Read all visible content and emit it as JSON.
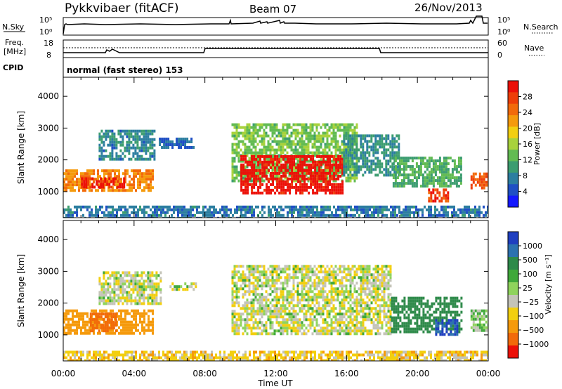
{
  "header": {
    "station": "Pykkvibaer (fitACF)",
    "beam": "Beam 07",
    "date": "26/Nov/2013"
  },
  "aux_panels": {
    "nsky": {
      "label": "N.Sky",
      "ticks_left": [
        "10^5",
        "10^0"
      ],
      "right_label": "N.Search",
      "ticks_right": [
        "10^5",
        "10^0"
      ]
    },
    "freq": {
      "label_line1": "Freq.",
      "label_line2": "[MHz]",
      "ticks_left": [
        "18",
        "8"
      ],
      "right_label": "Nave",
      "ticks_right": [
        "60",
        "0"
      ]
    },
    "cpid": {
      "label": "CPID",
      "value": "normal (fast stereo) 153"
    }
  },
  "chart_data": [
    {
      "type": "heatmap",
      "name": "power",
      "ylabel": "Slant Range [km]",
      "ylim": [
        180,
        4600
      ],
      "yticks": [
        "1000",
        "2000",
        "3000",
        "4000"
      ],
      "colorbar": {
        "label": "Power [dB]",
        "ticks": [
          "4",
          "8",
          "12",
          "16",
          "20",
          "24",
          "28"
        ],
        "colors": [
          "#1418ff",
          "#1f4fc4",
          "#2c7ea0",
          "#3c9d70",
          "#62bb52",
          "#a8d23c",
          "#f2cf10",
          "#f59a0c",
          "#f26a0a",
          "#ee3e08",
          "#ec1008"
        ]
      },
      "regions": [
        {
          "t0": 0.0,
          "t1": 5.0,
          "r0": 1050,
          "r1": 1700,
          "value": 22
        },
        {
          "t0": 1.0,
          "t1": 3.4,
          "r0": 1100,
          "r1": 1450,
          "value": 28
        },
        {
          "t0": 2.0,
          "t1": 5.1,
          "r0": 2000,
          "r1": 2950,
          "value": 9
        },
        {
          "t0": 5.4,
          "t1": 7.4,
          "r0": 2400,
          "r1": 2700,
          "value": 7
        },
        {
          "t0": 0.0,
          "t1": 24.0,
          "r0": 190,
          "r1": 560,
          "value": 8
        },
        {
          "t0": 9.5,
          "t1": 16.6,
          "r0": 1300,
          "r1": 3150,
          "value": 14
        },
        {
          "t0": 10.0,
          "t1": 15.8,
          "r0": 950,
          "r1": 2150,
          "value": 29
        },
        {
          "t0": 15.8,
          "t1": 19.0,
          "r0": 1500,
          "r1": 2800,
          "value": 10
        },
        {
          "t0": 18.6,
          "t1": 22.5,
          "r0": 1200,
          "r1": 2100,
          "value": 12
        },
        {
          "t0": 20.6,
          "t1": 21.7,
          "r0": 700,
          "r1": 1100,
          "value": 26
        },
        {
          "t0": 23.0,
          "t1": 24.0,
          "r0": 1100,
          "r1": 1600,
          "value": 25
        }
      ]
    },
    {
      "type": "heatmap",
      "name": "velocity",
      "ylabel": "Slant Range [km]",
      "ylim": [
        180,
        4600
      ],
      "yticks": [
        "1000",
        "2000",
        "3000",
        "4000"
      ],
      "xlabel": "Time UT",
      "xticks": [
        "00:00",
        "04:00",
        "08:00",
        "12:00",
        "16:00",
        "20:00",
        "00:00"
      ],
      "colorbar": {
        "label": "Velocity [m s⁻¹]",
        "ticks": [
          "1000",
          "500",
          "100",
          "25",
          "−25",
          "−100",
          "−500",
          "−1000"
        ],
        "colors": [
          "#1f3fc0",
          "#2c72b0",
          "#2e8a4a",
          "#3fa83a",
          "#8fd35c",
          "#c4c4b8",
          "#f2cf10",
          "#f59a0c",
          "#f26a0a",
          "#ec1008"
        ]
      },
      "regions": [
        {
          "t0": 0.0,
          "t1": 5.0,
          "r0": 1050,
          "r1": 1800,
          "value": -200
        },
        {
          "t0": 1.5,
          "t1": 3.0,
          "r0": 1100,
          "r1": 1700,
          "value": -600
        },
        {
          "t0": 2.0,
          "t1": 5.5,
          "r0": 2000,
          "r1": 3000,
          "value": 0
        },
        {
          "t0": 6.0,
          "t1": 7.5,
          "r0": 2400,
          "r1": 2650,
          "value": 0
        },
        {
          "t0": 0.0,
          "t1": 24.0,
          "r0": 190,
          "r1": 500,
          "value": -60
        },
        {
          "t0": 9.5,
          "t1": 18.5,
          "r0": 1000,
          "r1": 3200,
          "value": 0
        },
        {
          "t0": 18.5,
          "t1": 22.5,
          "r0": 1100,
          "r1": 2200,
          "value": 250
        },
        {
          "t0": 21.0,
          "t1": 22.3,
          "r0": 1000,
          "r1": 1500,
          "value": 700
        },
        {
          "t0": 23.0,
          "t1": 24.0,
          "r0": 1100,
          "r1": 1800,
          "value": 50
        }
      ]
    }
  ]
}
